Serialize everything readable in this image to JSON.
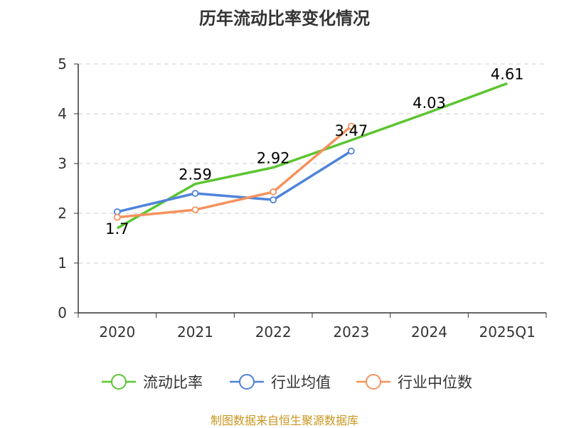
{
  "title": "历年流动比率变化情况",
  "source_note": "制图数据来自恒生聚源数据库",
  "chart_data": {
    "type": "line",
    "title": "历年流动比率变化情况",
    "categories": [
      "2020",
      "2021",
      "2022",
      "2023",
      "2024",
      "2025Q1"
    ],
    "y_ticks": [
      "0",
      "1",
      "2",
      "3",
      "4",
      "5"
    ],
    "ylim": [
      0,
      5
    ],
    "grid": true,
    "legend_position": "bottom",
    "series": [
      {
        "name": "流动比率",
        "color": "#5cc531",
        "values": [
          1.7,
          2.59,
          2.92,
          3.47,
          4.03,
          4.61
        ],
        "labels": [
          "1.7",
          "2.59",
          "2.92",
          "3.47",
          "4.03",
          "4.61"
        ]
      },
      {
        "name": "行业均值",
        "color": "#4f83d9",
        "values": [
          2.03,
          2.4,
          2.27,
          3.25,
          null,
          null
        ]
      },
      {
        "name": "行业中位数",
        "color": "#f5925d",
        "values": [
          1.92,
          2.07,
          2.43,
          3.75,
          null,
          null
        ]
      }
    ]
  }
}
